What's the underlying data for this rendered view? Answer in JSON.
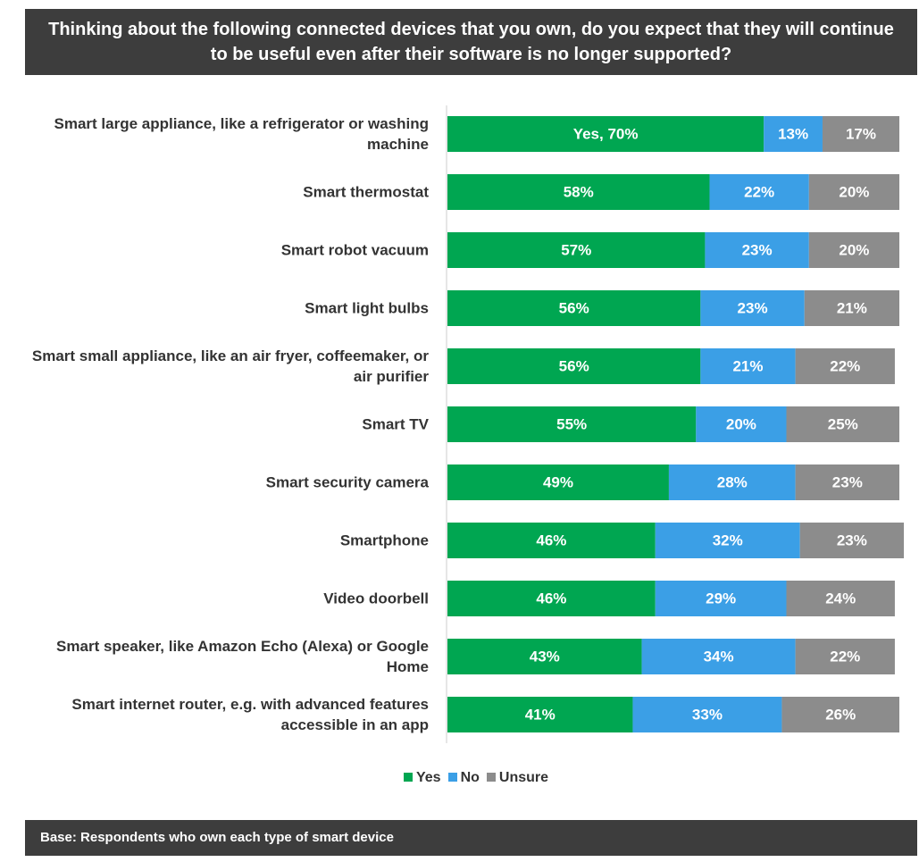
{
  "chart_data": {
    "type": "bar",
    "orientation": "horizontal",
    "stacked": true,
    "title": "Thinking about the following connected devices that you own, do you expect that they will continue to be useful even after their software is no longer supported?",
    "categories": [
      "Smart large appliance, like a refrigerator or washing machine",
      "Smart thermostat",
      "Smart robot vacuum",
      "Smart light bulbs",
      "Smart small appliance, like an air fryer, coffeemaker, or air purifier",
      "Smart TV",
      "Smart security camera",
      "Smartphone",
      "Video doorbell",
      "Smart speaker, like Amazon Echo (Alexa) or Google Home",
      "Smart internet router, e.g. with advanced features accessible in an app"
    ],
    "series": [
      {
        "name": "Yes",
        "color": "#00a651",
        "values": [
          70,
          58,
          57,
          56,
          56,
          55,
          49,
          46,
          46,
          43,
          41
        ],
        "value_labels": [
          "Yes, 70%",
          "58%",
          "57%",
          "56%",
          "56%",
          "55%",
          "49%",
          "46%",
          "46%",
          "43%",
          "41%"
        ]
      },
      {
        "name": "No",
        "color": "#3b9fe6",
        "values": [
          13,
          22,
          23,
          23,
          21,
          20,
          28,
          32,
          29,
          34,
          33
        ],
        "value_labels": [
          "13%",
          "22%",
          "23%",
          "23%",
          "21%",
          "20%",
          "28%",
          "32%",
          "29%",
          "34%",
          "33%"
        ]
      },
      {
        "name": "Unsure",
        "color": "#8c8c8c",
        "values": [
          17,
          20,
          20,
          21,
          22,
          25,
          23,
          23,
          24,
          22,
          26
        ],
        "value_labels": [
          "17%",
          "20%",
          "20%",
          "21%",
          "22%",
          "25%",
          "23%",
          "23%",
          "24%",
          "22%",
          "26%"
        ]
      }
    ],
    "xlim": [
      0,
      100
    ],
    "legend": "bottom",
    "note": "Base: Respondents who own each type of smart device"
  }
}
